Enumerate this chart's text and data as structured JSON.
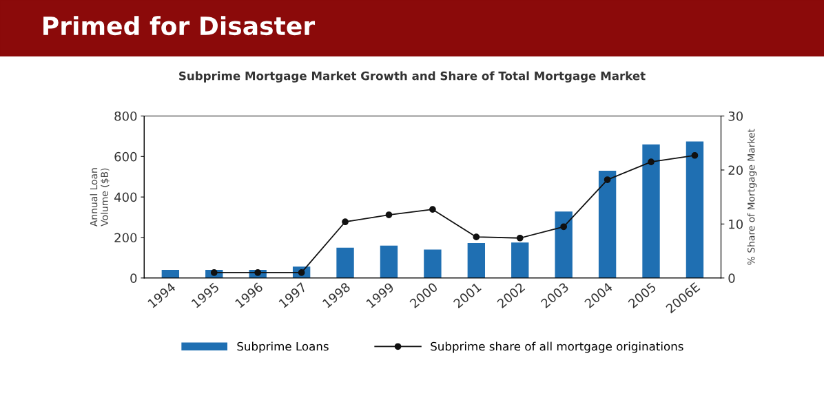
{
  "chart_data": {
    "type": "bar",
    "title": "Primed for Disaster",
    "subtitle": "Subprime Mortgage Market Growth and Share of Total Mortgage Market",
    "ylabel": "Annual Loan\nVolume ($B)",
    "y2label": "% Share of Mortgage Market",
    "categories": [
      "1994",
      "1995",
      "1996",
      "1997",
      "1998",
      "1999",
      "2000",
      "2001",
      "2002",
      "2003",
      "2004",
      "2005",
      "2006E"
    ],
    "series": [
      {
        "name": "Subprime Loans",
        "color": "#1f6fb2",
        "values": [
          40,
          40,
          40,
          56,
          150,
          160,
          140,
          173,
          175,
          328,
          530,
          660,
          674
        ]
      },
      {
        "name": "Subprime share of all mortgage originations",
        "type": "line",
        "axis": "y2",
        "color": "#111111",
        "marker": "circle",
        "values": [
          null,
          1,
          1,
          1,
          10.4,
          11.7,
          12.7,
          7.6,
          7.4,
          9.5,
          18.2,
          21.5,
          22.7
        ]
      }
    ],
    "ylim": [
      0,
      800
    ],
    "yticks": [
      0,
      200,
      400,
      600,
      800
    ],
    "y2lim": [
      0,
      30
    ],
    "y2ticks": [
      0,
      10,
      20,
      30
    ],
    "grid": false,
    "legend": "bottom"
  }
}
